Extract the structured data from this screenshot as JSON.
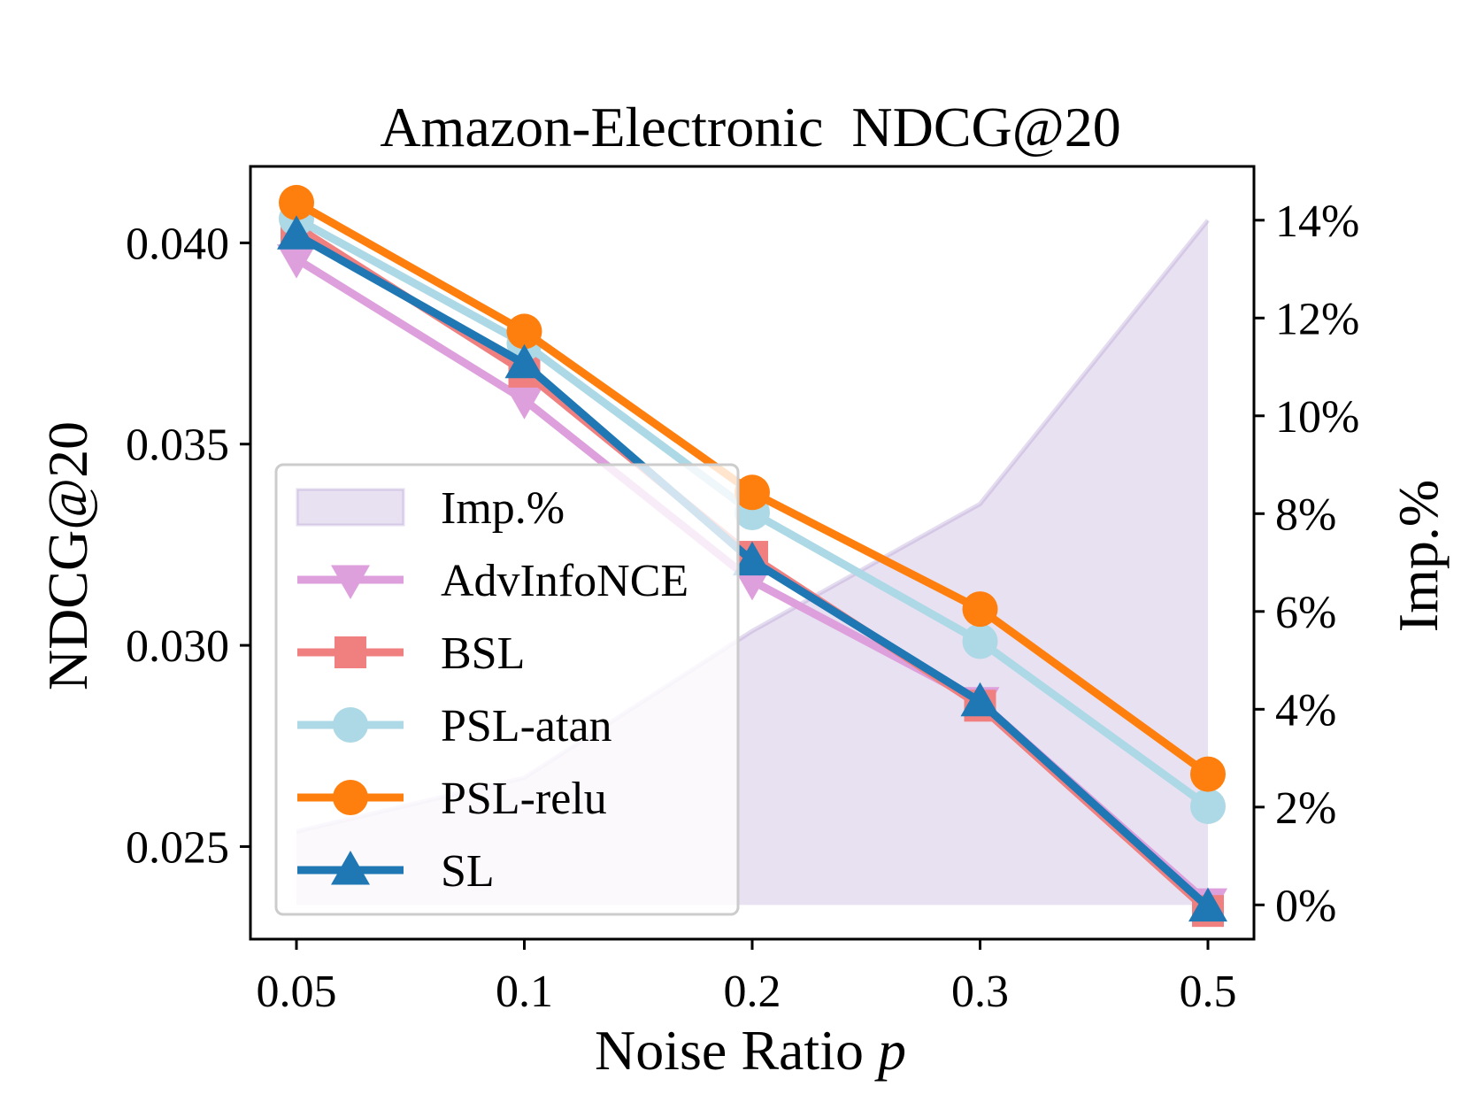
{
  "chart_data": {
    "type": "line",
    "title": "Amazon-Electronic  NDCG@20",
    "xlabel_main": "Noise Ratio ",
    "xlabel_var": "p",
    "ylabel": "NDCG@20",
    "y2label": "Imp.%",
    "categories": [
      "0.05",
      "0.1",
      "0.2",
      "0.3",
      "0.5"
    ],
    "ylim": [
      0.0227,
      0.0419
    ],
    "yticks": [
      0.025,
      0.03,
      0.035,
      0.04
    ],
    "ytick_labels": [
      "0.025",
      "0.030",
      "0.035",
      "0.040"
    ],
    "y2lim": [
      -0.7,
      15.1
    ],
    "y2ticks": [
      0,
      2,
      4,
      6,
      8,
      10,
      12,
      14
    ],
    "y2tick_labels": [
      "0%",
      "2%",
      "4%",
      "6%",
      "8%",
      "10%",
      "12%",
      "14%"
    ],
    "grid": false,
    "legend_position": "lower left",
    "area": {
      "name": "Imp.%",
      "values": [
        1.5,
        2.6,
        5.6,
        8.2,
        14.0
      ],
      "color": "#b39cd0"
    },
    "series": [
      {
        "name": "AdvInfoNCE",
        "values": [
          0.0396,
          0.0361,
          0.0316,
          0.0286,
          0.0236
        ],
        "color": "#dda0dd",
        "marker": "triangle-down"
      },
      {
        "name": "BSL",
        "values": [
          0.0404,
          0.0368,
          0.0322,
          0.0285,
          0.0234
        ],
        "color": "#f08080",
        "marker": "square"
      },
      {
        "name": "PSL-atan",
        "values": [
          0.0406,
          0.0375,
          0.0333,
          0.0301,
          0.026
        ],
        "color": "#add8e6",
        "marker": "circle"
      },
      {
        "name": "PSL-relu",
        "values": [
          0.041,
          0.0378,
          0.0338,
          0.0309,
          0.0268
        ],
        "color": "#ff7f0e",
        "marker": "circle"
      },
      {
        "name": "SL",
        "values": [
          0.0402,
          0.037,
          0.0321,
          0.0286,
          0.0235
        ],
        "color": "#1f77b4",
        "marker": "triangle-up"
      }
    ]
  }
}
